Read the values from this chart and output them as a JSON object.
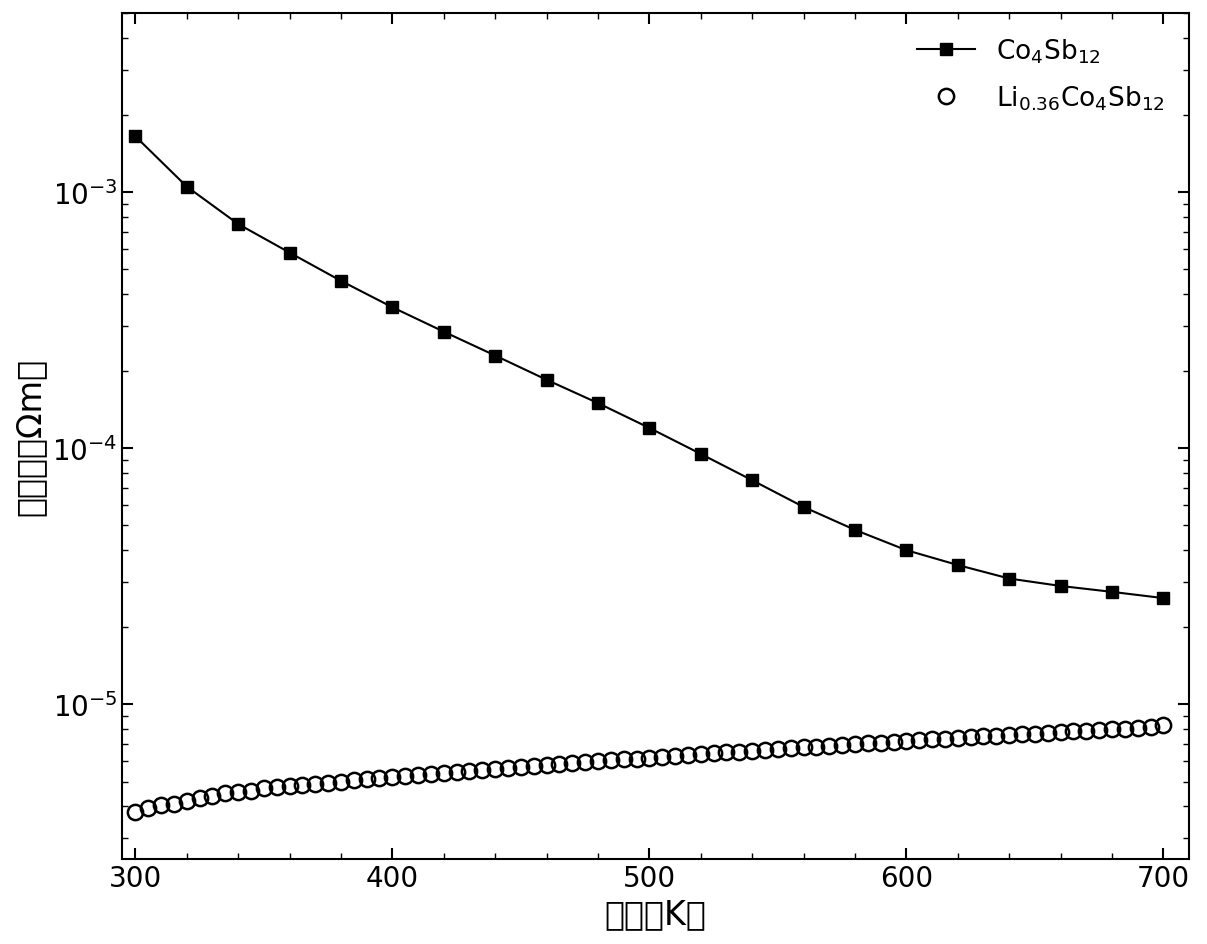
{
  "xlabel": "温度（K）",
  "ylabel": "电际率（Ωm）",
  "xlim": [
    295,
    710
  ],
  "ylim_log": [
    2.5e-06,
    0.005
  ],
  "background_color": "#ffffff",
  "series1_x": [
    300,
    320,
    340,
    360,
    380,
    400,
    420,
    440,
    460,
    480,
    500,
    520,
    540,
    560,
    580,
    600,
    620,
    640,
    660,
    680,
    700
  ],
  "series1_y": [
    0.00165,
    0.00105,
    0.00075,
    0.00058,
    0.00045,
    0.000355,
    0.000285,
    0.00023,
    0.000185,
    0.00015,
    0.00012,
    9.5e-05,
    7.5e-05,
    5.9e-05,
    4.8e-05,
    4e-05,
    3.5e-05,
    3.1e-05,
    2.9e-05,
    2.75e-05,
    2.6e-05
  ],
  "series2_x": [
    300,
    305,
    310,
    315,
    320,
    325,
    330,
    335,
    340,
    345,
    350,
    355,
    360,
    365,
    370,
    375,
    380,
    385,
    390,
    395,
    400,
    405,
    410,
    415,
    420,
    425,
    430,
    435,
    440,
    445,
    450,
    455,
    460,
    465,
    470,
    475,
    480,
    485,
    490,
    495,
    500,
    505,
    510,
    515,
    520,
    525,
    530,
    535,
    540,
    545,
    550,
    555,
    560,
    565,
    570,
    575,
    580,
    585,
    590,
    595,
    600,
    605,
    610,
    615,
    620,
    625,
    630,
    635,
    640,
    645,
    650,
    655,
    660,
    665,
    670,
    675,
    680,
    685,
    690,
    695,
    700
  ],
  "series2_y": [
    3.8e-06,
    3.95e-06,
    4.05e-06,
    4.1e-06,
    4.2e-06,
    4.3e-06,
    4.4e-06,
    4.5e-06,
    4.55e-06,
    4.6e-06,
    4.7e-06,
    4.75e-06,
    4.8e-06,
    4.85e-06,
    4.9e-06,
    4.95e-06,
    5e-06,
    5.05e-06,
    5.1e-06,
    5.15e-06,
    5.2e-06,
    5.25e-06,
    5.3e-06,
    5.35e-06,
    5.4e-06,
    5.45e-06,
    5.5e-06,
    5.55e-06,
    5.6e-06,
    5.65e-06,
    5.7e-06,
    5.75e-06,
    5.8e-06,
    5.85e-06,
    5.9e-06,
    5.95e-06,
    6e-06,
    6.05e-06,
    6.1e-06,
    6.15e-06,
    6.2e-06,
    6.25e-06,
    6.3e-06,
    6.35e-06,
    6.4e-06,
    6.45e-06,
    6.5e-06,
    6.55e-06,
    6.6e-06,
    6.65e-06,
    6.7e-06,
    6.75e-06,
    6.8e-06,
    6.85e-06,
    6.9e-06,
    6.95e-06,
    7e-06,
    7.05e-06,
    7.1e-06,
    7.15e-06,
    7.2e-06,
    7.25e-06,
    7.3e-06,
    7.35e-06,
    7.4e-06,
    7.45e-06,
    7.5e-06,
    7.55e-06,
    7.6e-06,
    7.65e-06,
    7.7e-06,
    7.75e-06,
    7.8e-06,
    7.85e-06,
    7.9e-06,
    7.95e-06,
    8e-06,
    8.05e-06,
    8.1e-06,
    8.2e-06,
    8.3e-06
  ],
  "line_color": "#000000",
  "marker_size": 9,
  "circle_size": 11,
  "linewidth": 1.5,
  "axis_fontsize": 24,
  "tick_fontsize": 20,
  "legend_fontsize": 19
}
